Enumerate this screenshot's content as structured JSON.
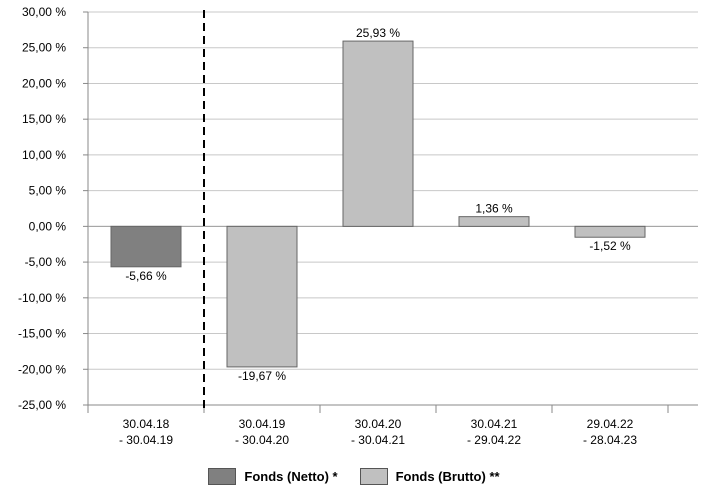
{
  "chart_data": {
    "type": "bar",
    "categories": [
      [
        "30.04.18",
        "- 30.04.19"
      ],
      [
        "30.04.19",
        "- 30.04.20"
      ],
      [
        "30.04.20",
        "- 30.04.21"
      ],
      [
        "30.04.21",
        "- 29.04.22"
      ],
      [
        "29.04.22",
        "- 28.04.23"
      ]
    ],
    "values": [
      -5.66,
      -19.67,
      25.93,
      1.36,
      -1.52
    ],
    "value_labels": [
      "-5,66 %",
      "-19,67 %",
      "25,93 %",
      "1,36 %",
      "-1,52 %"
    ],
    "series_index": [
      0,
      1,
      1,
      1,
      1
    ],
    "series": [
      {
        "name": "Fonds (Netto) *",
        "color": "#808080"
      },
      {
        "name": "Fonds (Brutto) **",
        "color": "#c0c0c0"
      }
    ],
    "yticks": [
      "30,00 %",
      "25,00 %",
      "20,00 %",
      "15,00 %",
      "10,00 %",
      "5,00 %",
      "0,00 %",
      "-5,00 %",
      "-10,00 %",
      "-15,00 %",
      "-20,00 %",
      "-25,00 %"
    ],
    "ylim": [
      -25,
      30
    ],
    "ystep": 5,
    "grid": true,
    "separator_after_category": 0,
    "legend_position": "bottom",
    "title": "",
    "xlabel": "",
    "ylabel": ""
  }
}
